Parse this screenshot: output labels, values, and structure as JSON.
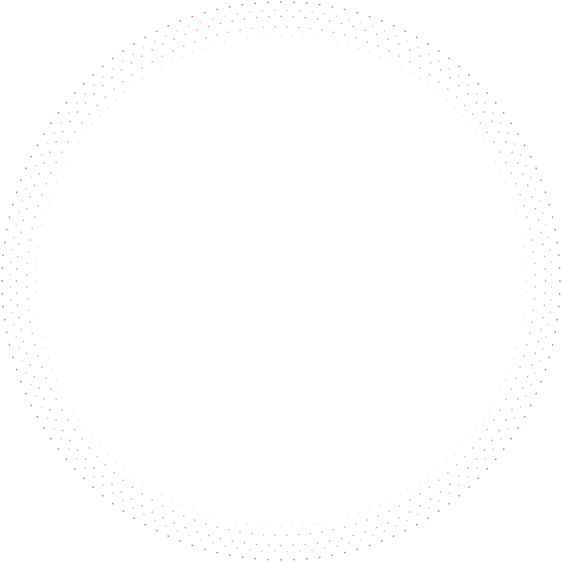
{
  "graphic": {
    "type": "dotted-ring",
    "dot_color": "#e46a6a",
    "ring_count": 5,
    "dots_per_ring": 136
  }
}
